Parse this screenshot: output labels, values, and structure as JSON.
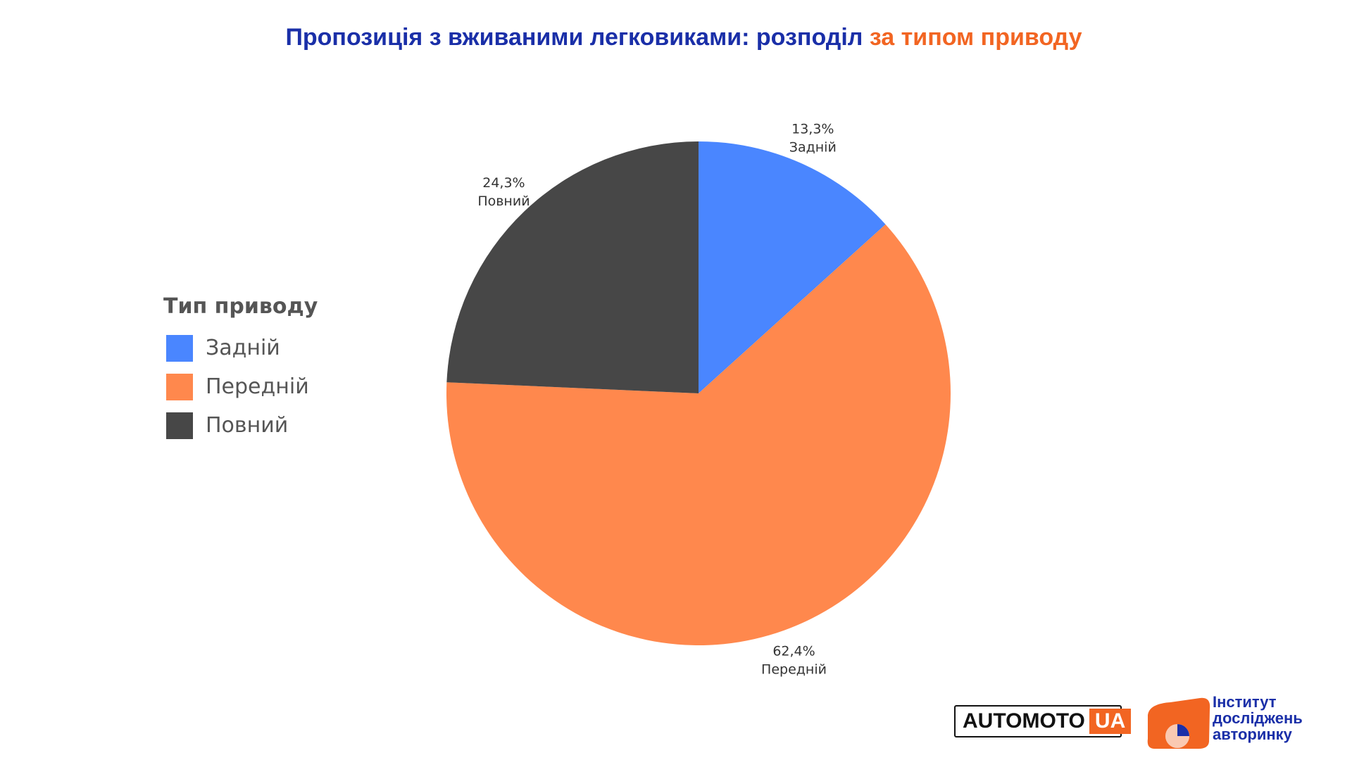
{
  "title": {
    "main": "Пропозиція з вживаними легковиками: розподіл",
    "accent": "за типом приводу"
  },
  "colors": {
    "title": "#1a2fa8",
    "accent": "#f26522",
    "rear": "#4a86ff",
    "front": "#ff884d",
    "full": "#474747"
  },
  "chart_data": {
    "type": "pie",
    "legend_title": "Тип приводу",
    "legend_position": "left",
    "slices": [
      {
        "name": "Задній",
        "value": 13.3,
        "label": "13,3%",
        "color": "#4a86ff"
      },
      {
        "name": "Передній",
        "value": 62.4,
        "label": "62,4%",
        "color": "#ff884d"
      },
      {
        "name": "Повний",
        "value": 24.3,
        "label": "24,3%",
        "color": "#474747"
      }
    ]
  },
  "logos": {
    "automoto_left": "AUTOMOTO",
    "automoto_right": "UA",
    "institute_line1": "Інститут",
    "institute_line2": "досліджень",
    "institute_line3": "авторинку"
  }
}
